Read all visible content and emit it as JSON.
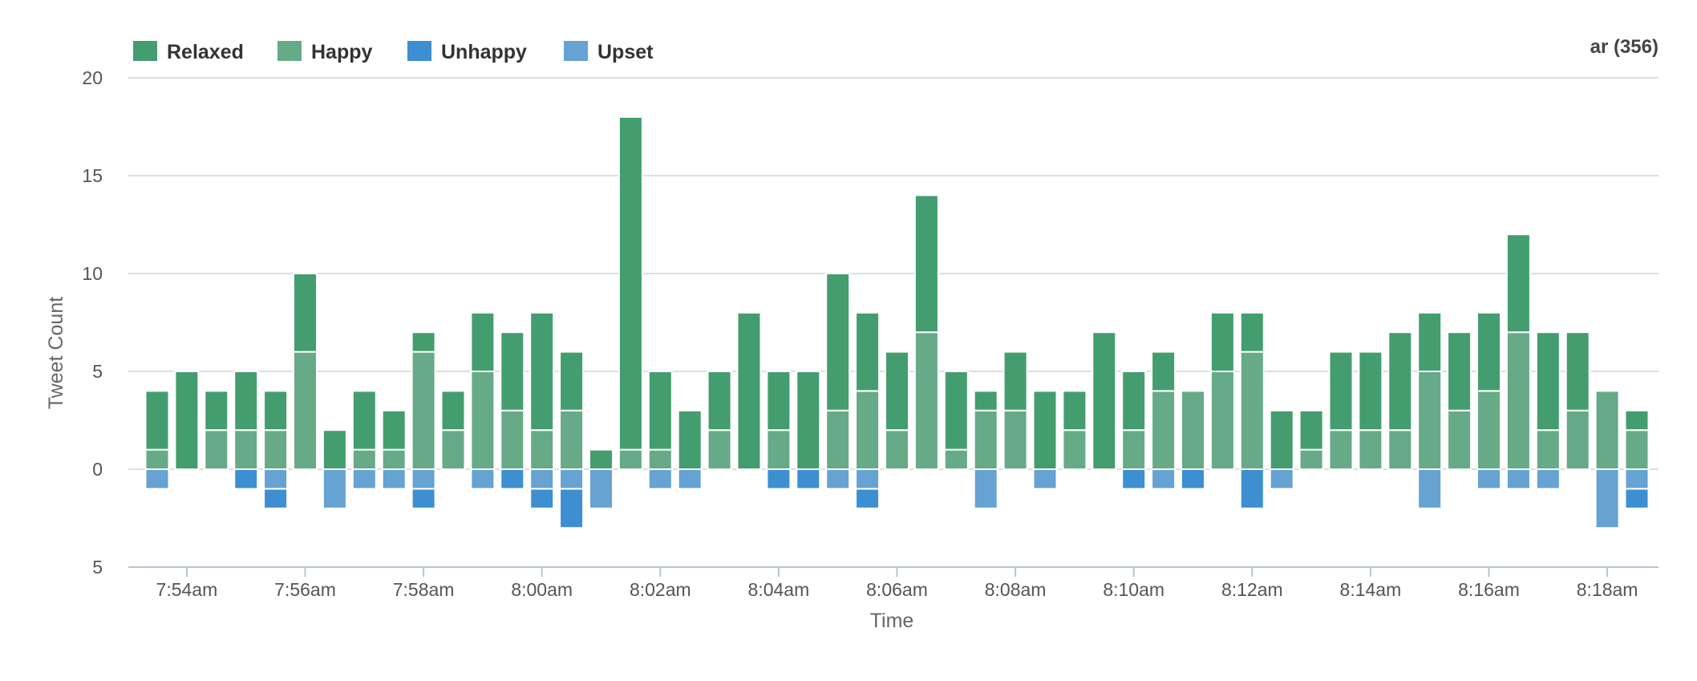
{
  "chart_data": {
    "type": "bar",
    "stacked": true,
    "title": "",
    "corner_label": "ar (356)",
    "xlabel": "Time",
    "ylabel": "Tweet Count",
    "ylim": [
      -5,
      20
    ],
    "yticks": [
      20,
      15,
      10,
      5,
      0,
      -5
    ],
    "ytick_labels": [
      "20",
      "15",
      "10",
      "5",
      "0",
      "5"
    ],
    "x_tick_labels": [
      "7:54am",
      "7:56am",
      "7:58am",
      "8:00am",
      "8:02am",
      "8:04am",
      "8:06am",
      "8:08am",
      "8:10am",
      "8:12am",
      "8:14am",
      "8:16am",
      "8:18am"
    ],
    "x_tick_bar_index": [
      1,
      5,
      9,
      13,
      17,
      21,
      25,
      29,
      33,
      37,
      41,
      45,
      49
    ],
    "categories": [
      "7:53:30",
      "7:54:00",
      "7:54:30",
      "7:55:00",
      "7:55:30",
      "7:56:00",
      "7:56:30",
      "7:57:00",
      "7:57:30",
      "7:58:00",
      "7:58:30",
      "7:59:00",
      "7:59:30",
      "8:00:00",
      "8:00:30",
      "8:01:00",
      "8:01:30",
      "8:02:00",
      "8:02:30",
      "8:03:00",
      "8:03:30",
      "8:04:00",
      "8:04:30",
      "8:05:00",
      "8:05:30",
      "8:06:00",
      "8:06:30",
      "8:07:00",
      "8:07:30",
      "8:08:00",
      "8:08:30",
      "8:09:00",
      "8:09:30",
      "8:10:00",
      "8:10:30",
      "8:11:00",
      "8:11:30",
      "8:12:00",
      "8:12:30",
      "8:13:00",
      "8:13:30",
      "8:14:00",
      "8:14:30",
      "8:15:00",
      "8:15:30",
      "8:16:00",
      "8:16:30",
      "8:17:00",
      "8:17:30",
      "8:18:00",
      "8:18:30"
    ],
    "series": [
      {
        "name": "Happy",
        "color": "#66aa88",
        "values": [
          1,
          0,
          2,
          2,
          2,
          6,
          0,
          1,
          1,
          6,
          2,
          5,
          3,
          2,
          3,
          0,
          1,
          1,
          0,
          2,
          0,
          2,
          0,
          3,
          4,
          2,
          7,
          1,
          3,
          3,
          0,
          2,
          0,
          2,
          4,
          4,
          5,
          6,
          0,
          1,
          2,
          2,
          2,
          5,
          3,
          4,
          7,
          2,
          3,
          4,
          2
        ]
      },
      {
        "name": "Relaxed",
        "color": "#449d6f",
        "values": [
          3,
          5,
          2,
          3,
          2,
          4,
          2,
          3,
          2,
          1,
          2,
          3,
          4,
          6,
          3,
          1,
          17,
          4,
          3,
          3,
          8,
          3,
          5,
          7,
          4,
          4,
          7,
          4,
          1,
          3,
          4,
          2,
          7,
          3,
          2,
          0,
          3,
          2,
          3,
          2,
          4,
          4,
          5,
          3,
          4,
          4,
          5,
          5,
          4,
          0,
          1
        ]
      },
      {
        "name": "Upset",
        "color": "#66a2d2",
        "values": [
          -1,
          0,
          0,
          0,
          -1,
          0,
          -2,
          -1,
          -1,
          -1,
          0,
          -1,
          0,
          -1,
          -1,
          -2,
          0,
          -1,
          -1,
          0,
          0,
          0,
          0,
          -1,
          -1,
          0,
          0,
          0,
          -2,
          0,
          -1,
          0,
          0,
          0,
          -1,
          0,
          0,
          0,
          -1,
          0,
          0,
          0,
          0,
          -2,
          0,
          -1,
          -1,
          -1,
          0,
          -3,
          -1
        ]
      },
      {
        "name": "Unhappy",
        "color": "#3d8fd1",
        "values": [
          0,
          0,
          0,
          -1,
          -1,
          0,
          0,
          0,
          0,
          -1,
          0,
          0,
          -1,
          -1,
          -2,
          0,
          0,
          0,
          0,
          0,
          0,
          -1,
          -1,
          0,
          -1,
          0,
          0,
          0,
          0,
          0,
          0,
          0,
          0,
          -1,
          0,
          -1,
          0,
          -2,
          0,
          0,
          0,
          0,
          0,
          0,
          0,
          0,
          0,
          0,
          0,
          0,
          -1
        ]
      }
    ],
    "legend": [
      {
        "label": "Relaxed",
        "color": "#449d6f"
      },
      {
        "label": "Happy",
        "color": "#66aa88"
      },
      {
        "label": "Unhappy",
        "color": "#3d8fd1"
      },
      {
        "label": "Upset",
        "color": "#66a2d2"
      }
    ],
    "legend_position": "top-left",
    "grid": true
  }
}
